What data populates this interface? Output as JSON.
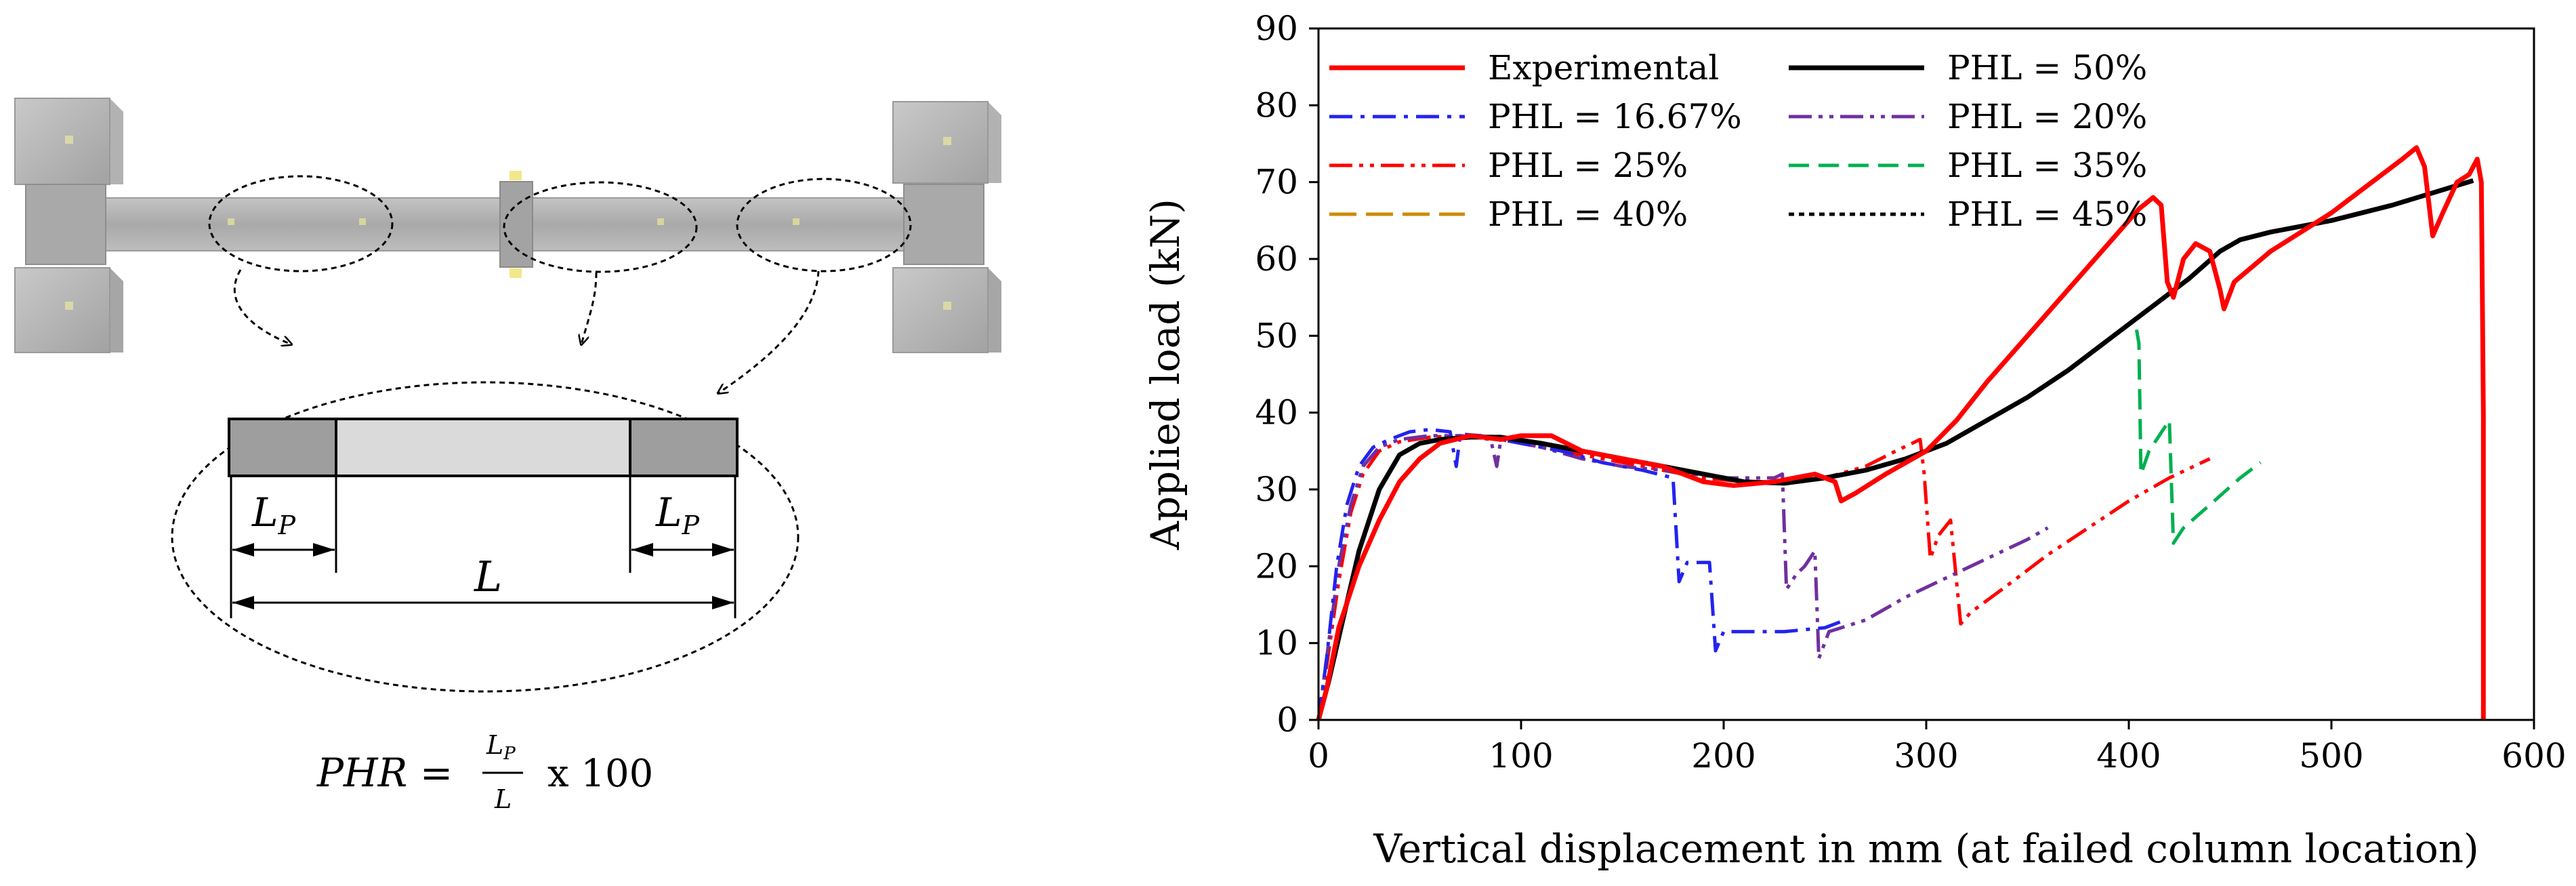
{
  "left_diagram": {
    "lp_left_label": "L",
    "lp_left_sub": "P",
    "lp_right_label": "L",
    "lp_right_sub": "P",
    "span_label": "L",
    "equation": {
      "lhs": "PHR = ",
      "numerator_var": "L",
      "numerator_sub": "P",
      "denominator": "L",
      "multiplier": "x 100"
    }
  },
  "chart_data": {
    "type": "line",
    "title": "",
    "xlabel": "Vertical displacement in mm (at failed column location)",
    "ylabel": "Applied load (kN)",
    "xlim": [
      0,
      600
    ],
    "ylim": [
      0,
      90
    ],
    "xticks": [
      0,
      100,
      200,
      300,
      400,
      500,
      600
    ],
    "yticks": [
      0,
      10,
      20,
      30,
      40,
      50,
      60,
      70,
      80,
      90
    ],
    "legend_position": "top-left",
    "grid": false,
    "series": [
      {
        "name": "Experimental",
        "color": "#ff0000",
        "dash": "solid",
        "width": 7,
        "points": [
          [
            0,
            0
          ],
          [
            4,
            4
          ],
          [
            10,
            12
          ],
          [
            20,
            20
          ],
          [
            30,
            26
          ],
          [
            40,
            31
          ],
          [
            50,
            34
          ],
          [
            60,
            36
          ],
          [
            75,
            37
          ],
          [
            90,
            36.5
          ],
          [
            100,
            37
          ],
          [
            115,
            37
          ],
          [
            130,
            35
          ],
          [
            150,
            34
          ],
          [
            170,
            33
          ],
          [
            190,
            31
          ],
          [
            205,
            30.5
          ],
          [
            225,
            31
          ],
          [
            245,
            32
          ],
          [
            255,
            31
          ],
          [
            258,
            28.5
          ],
          [
            265,
            29.5
          ],
          [
            280,
            32
          ],
          [
            290,
            33.5
          ],
          [
            300,
            35
          ],
          [
            315,
            39
          ],
          [
            330,
            44
          ],
          [
            350,
            50
          ],
          [
            370,
            56
          ],
          [
            390,
            62
          ],
          [
            405,
            66.5
          ],
          [
            412,
            68
          ],
          [
            416,
            67
          ],
          [
            419,
            57
          ],
          [
            422,
            55
          ],
          [
            427,
            60
          ],
          [
            433,
            62
          ],
          [
            440,
            61
          ],
          [
            445,
            56
          ],
          [
            447,
            53.5
          ],
          [
            452,
            57
          ],
          [
            470,
            61
          ],
          [
            500,
            66
          ],
          [
            520,
            70
          ],
          [
            535,
            73
          ],
          [
            542,
            74.5
          ],
          [
            546,
            72
          ],
          [
            550,
            63
          ],
          [
            555,
            66
          ],
          [
            562,
            70
          ],
          [
            568,
            71
          ],
          [
            572,
            73
          ],
          [
            574,
            70
          ],
          [
            575,
            40
          ],
          [
            575,
            0
          ]
        ]
      },
      {
        "name": "PHL = 50%",
        "color": "#000000",
        "dash": "solid",
        "width": 7,
        "points": [
          [
            0,
            0
          ],
          [
            5,
            5
          ],
          [
            12,
            13
          ],
          [
            20,
            22
          ],
          [
            30,
            30
          ],
          [
            40,
            34.5
          ],
          [
            50,
            36
          ],
          [
            60,
            36.5
          ],
          [
            75,
            36.8
          ],
          [
            90,
            36.8
          ],
          [
            110,
            36
          ],
          [
            130,
            35
          ],
          [
            150,
            34
          ],
          [
            170,
            33
          ],
          [
            190,
            32
          ],
          [
            210,
            31
          ],
          [
            230,
            30.8
          ],
          [
            250,
            31.5
          ],
          [
            270,
            32.5
          ],
          [
            290,
            34
          ],
          [
            310,
            36
          ],
          [
            330,
            39
          ],
          [
            350,
            42
          ],
          [
            370,
            45.5
          ],
          [
            390,
            49.5
          ],
          [
            410,
            53.5
          ],
          [
            430,
            57.5
          ],
          [
            445,
            61
          ],
          [
            455,
            62.5
          ],
          [
            470,
            63.5
          ],
          [
            500,
            65
          ],
          [
            530,
            67
          ],
          [
            555,
            69
          ],
          [
            570,
            70.2
          ]
        ]
      },
      {
        "name": "PHL = 16.67%",
        "color": "#2323ee",
        "dash": "dashdot",
        "width": 5,
        "points": [
          [
            0,
            0
          ],
          [
            4,
            8
          ],
          [
            9,
            20
          ],
          [
            14,
            28
          ],
          [
            20,
            33
          ],
          [
            27,
            35.5
          ],
          [
            35,
            36.5
          ],
          [
            45,
            37.5
          ],
          [
            55,
            37.8
          ],
          [
            65,
            37.5
          ],
          [
            68,
            33
          ],
          [
            70,
            37.2
          ],
          [
            80,
            37
          ],
          [
            90,
            36.5
          ],
          [
            100,
            36
          ],
          [
            120,
            35
          ],
          [
            140,
            33.5
          ],
          [
            160,
            32.5
          ],
          [
            175,
            31.5
          ],
          [
            178,
            18
          ],
          [
            182,
            20.5
          ],
          [
            193,
            20.5
          ],
          [
            196,
            9
          ],
          [
            200,
            11.5
          ],
          [
            230,
            11.5
          ],
          [
            250,
            12
          ],
          [
            260,
            13
          ]
        ]
      },
      {
        "name": "PHL = 20%",
        "color": "#7030a0",
        "dash": "dashdotdot",
        "width": 5,
        "points": [
          [
            0,
            0
          ],
          [
            4,
            8
          ],
          [
            10,
            20
          ],
          [
            16,
            28
          ],
          [
            22,
            33
          ],
          [
            30,
            35.5
          ],
          [
            40,
            36.5
          ],
          [
            55,
            37
          ],
          [
            70,
            37
          ],
          [
            85,
            36.5
          ],
          [
            88,
            33
          ],
          [
            90,
            36.5
          ],
          [
            110,
            35.5
          ],
          [
            130,
            34
          ],
          [
            150,
            33
          ],
          [
            170,
            32.5
          ],
          [
            200,
            31.5
          ],
          [
            225,
            31.5
          ],
          [
            229,
            32
          ],
          [
            231,
            17
          ],
          [
            236,
            19
          ],
          [
            240,
            20
          ],
          [
            245,
            22
          ],
          [
            247,
            8
          ],
          [
            252,
            11.5
          ],
          [
            270,
            13
          ],
          [
            290,
            16
          ],
          [
            310,
            18.5
          ],
          [
            330,
            21
          ],
          [
            350,
            23.5
          ],
          [
            360,
            25
          ]
        ]
      },
      {
        "name": "PHL = 25%",
        "color": "#ff0000",
        "dash": "dashdotdot",
        "width": 5,
        "points": [
          [
            0,
            0
          ],
          [
            4,
            7
          ],
          [
            10,
            18
          ],
          [
            16,
            27
          ],
          [
            22,
            32
          ],
          [
            30,
            35
          ],
          [
            40,
            36.2
          ],
          [
            55,
            36.8
          ],
          [
            70,
            37
          ],
          [
            90,
            36.5
          ],
          [
            110,
            35.5
          ],
          [
            130,
            34.5
          ],
          [
            150,
            33.5
          ],
          [
            170,
            32.5
          ],
          [
            190,
            31.5
          ],
          [
            210,
            31
          ],
          [
            230,
            31
          ],
          [
            250,
            31.5
          ],
          [
            270,
            33
          ],
          [
            285,
            35
          ],
          [
            297,
            36.5
          ],
          [
            299,
            32
          ],
          [
            302,
            21
          ],
          [
            306,
            24
          ],
          [
            312,
            26
          ],
          [
            317,
            12.5
          ],
          [
            322,
            14
          ],
          [
            340,
            17.5
          ],
          [
            360,
            21.5
          ],
          [
            380,
            25
          ],
          [
            400,
            28.5
          ],
          [
            420,
            31.5
          ],
          [
            440,
            34
          ]
        ]
      },
      {
        "name": "PHL = 35%",
        "color": "#00b050",
        "dash": "dashed",
        "width": 5,
        "points": [
          [
            0,
            0
          ],
          [
            5,
            5
          ],
          [
            12,
            13
          ],
          [
            20,
            22
          ],
          [
            30,
            30
          ],
          [
            40,
            34.5
          ],
          [
            50,
            36
          ],
          [
            60,
            36.5
          ],
          [
            75,
            36.8
          ],
          [
            90,
            36.8
          ],
          [
            110,
            36
          ],
          [
            130,
            35
          ],
          [
            150,
            34
          ],
          [
            170,
            33
          ],
          [
            190,
            32
          ],
          [
            210,
            31
          ],
          [
            230,
            30.8
          ],
          [
            250,
            31.5
          ],
          [
            270,
            32.5
          ],
          [
            290,
            34
          ],
          [
            310,
            36
          ],
          [
            330,
            39
          ],
          [
            350,
            42
          ],
          [
            370,
            45.5
          ],
          [
            390,
            49.5
          ],
          [
            403,
            52
          ],
          [
            405,
            49
          ],
          [
            406,
            32
          ],
          [
            410,
            35
          ],
          [
            415,
            37
          ],
          [
            420,
            39
          ],
          [
            422,
            23
          ],
          [
            427,
            25
          ],
          [
            440,
            28
          ],
          [
            455,
            31.5
          ],
          [
            465,
            33.5
          ]
        ]
      },
      {
        "name": "PHL = 40%",
        "color": "#cc8a00",
        "dash": "longdash",
        "width": 5,
        "points": [
          [
            0,
            0
          ],
          [
            5,
            5
          ],
          [
            12,
            13
          ],
          [
            20,
            22
          ],
          [
            30,
            30
          ],
          [
            40,
            34.5
          ],
          [
            50,
            36
          ],
          [
            60,
            36.5
          ],
          [
            75,
            36.8
          ],
          [
            90,
            36.8
          ],
          [
            110,
            36
          ],
          [
            130,
            35
          ],
          [
            150,
            34
          ],
          [
            170,
            33
          ],
          [
            190,
            32
          ],
          [
            210,
            31
          ],
          [
            230,
            30.8
          ],
          [
            250,
            31.5
          ],
          [
            270,
            32.5
          ],
          [
            290,
            34
          ],
          [
            310,
            36
          ],
          [
            330,
            39
          ],
          [
            350,
            42
          ],
          [
            370,
            45.5
          ],
          [
            390,
            49.5
          ],
          [
            410,
            53.5
          ],
          [
            420,
            55.5
          ]
        ]
      },
      {
        "name": "PHL = 45%",
        "color": "#000000",
        "dash": "dotted",
        "width": 5,
        "points": [
          [
            0,
            0
          ],
          [
            5,
            5
          ],
          [
            12,
            13
          ],
          [
            20,
            22
          ],
          [
            30,
            30
          ],
          [
            40,
            34.5
          ],
          [
            50,
            36
          ],
          [
            60,
            36.5
          ],
          [
            75,
            36.8
          ],
          [
            90,
            36.8
          ],
          [
            110,
            36
          ],
          [
            130,
            35
          ],
          [
            150,
            34
          ],
          [
            170,
            33
          ],
          [
            190,
            32
          ],
          [
            210,
            31
          ],
          [
            230,
            30.8
          ],
          [
            250,
            31.5
          ],
          [
            270,
            32.5
          ],
          [
            290,
            34
          ],
          [
            310,
            36
          ],
          [
            330,
            39
          ],
          [
            350,
            42
          ],
          [
            370,
            45.5
          ],
          [
            390,
            49.5
          ],
          [
            410,
            53.5
          ],
          [
            420,
            55.5
          ]
        ]
      }
    ]
  }
}
